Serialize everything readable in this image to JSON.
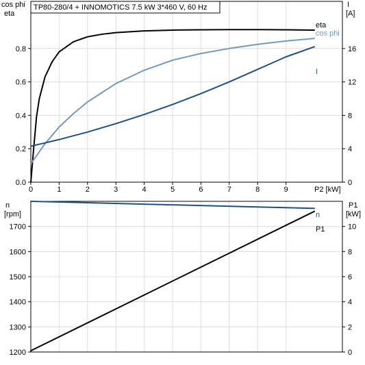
{
  "chart_data": [
    {
      "type": "line",
      "title": "TP80-280/4 + INNOMOTICS   7.5 kW   3*460 V, 60 Hz",
      "xlabel": "P2 [kW]",
      "ylabel_left": [
        "cos phi",
        "eta"
      ],
      "ylabel_right": [
        "I",
        "[A]"
      ],
      "xlim": [
        0,
        10
      ],
      "ylim_left": [
        0,
        1.0
      ],
      "ylim_right": [
        0,
        20
      ],
      "x_ticks": [
        "0",
        "1",
        "2",
        "3",
        "4",
        "5",
        "6",
        "7",
        "8",
        "9"
      ],
      "y_ticks_left": [
        "0.0",
        "0.2",
        "0.4",
        "0.6",
        "0.8"
      ],
      "y_ticks_right": [
        "0",
        "4",
        "8",
        "12",
        "16"
      ],
      "grid": true,
      "series": [
        {
          "name": "eta",
          "axis": "left",
          "color": "#000000",
          "x": [
            0,
            0.1,
            0.2,
            0.3,
            0.5,
            0.75,
            1,
            1.5,
            2,
            2.5,
            3,
            4,
            5,
            6,
            7,
            8,
            9,
            10
          ],
          "y": [
            0,
            0.2,
            0.39,
            0.5,
            0.63,
            0.72,
            0.78,
            0.84,
            0.87,
            0.885,
            0.895,
            0.905,
            0.91,
            0.912,
            0.913,
            0.913,
            0.912,
            0.91
          ]
        },
        {
          "name": "cos phi",
          "axis": "left",
          "color": "#7499bd",
          "x": [
            0,
            0.25,
            0.5,
            1,
            1.5,
            2,
            3,
            4,
            5,
            6,
            7,
            8,
            9,
            10
          ],
          "y": [
            0.11,
            0.17,
            0.23,
            0.33,
            0.41,
            0.48,
            0.59,
            0.67,
            0.73,
            0.77,
            0.8,
            0.825,
            0.845,
            0.86
          ]
        },
        {
          "name": "I",
          "axis": "right",
          "color": "#1a4f8a",
          "x": [
            0,
            1,
            2,
            3,
            4,
            5,
            6,
            7,
            8,
            9,
            10
          ],
          "y": [
            4.3,
            5.1,
            6.0,
            7.0,
            8.1,
            9.3,
            10.6,
            12.0,
            13.5,
            15.0,
            16.2
          ]
        }
      ]
    },
    {
      "type": "line",
      "xlim": [
        0,
        10
      ],
      "ylabel_left": [
        "n",
        "[rpm]"
      ],
      "ylabel_right": [
        "P1",
        "[kW]"
      ],
      "ylim_left": [
        1200,
        1800
      ],
      "ylim_right": [
        0,
        12
      ],
      "y_ticks_left": [
        "1200",
        "1300",
        "1400",
        "1500",
        "1600",
        "1700"
      ],
      "y_ticks_right": [
        "0",
        "2",
        "4",
        "6",
        "8",
        "10"
      ],
      "grid": true,
      "series": [
        {
          "name": "n",
          "axis": "left",
          "color": "#1a4f8a",
          "x": [
            0,
            10
          ],
          "y": [
            1800,
            1772
          ]
        },
        {
          "name": "P1",
          "axis": "right",
          "color": "#000000",
          "x": [
            0,
            10
          ],
          "y": [
            0.1,
            11.2
          ]
        }
      ]
    }
  ]
}
